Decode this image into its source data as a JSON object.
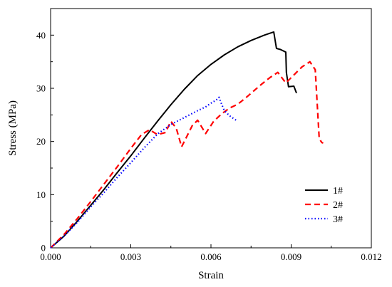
{
  "chart_data": {
    "type": "line",
    "xlabel": "Strain",
    "ylabel": "Stress (MPa)",
    "xlim": [
      0,
      0.012
    ],
    "ylim": [
      0,
      45
    ],
    "xticks": [
      0.0,
      0.003,
      0.006,
      0.009,
      0.012
    ],
    "xtick_labels": [
      "0.000",
      "0.003",
      "0.006",
      "0.009",
      "0.012"
    ],
    "yticks": [
      0,
      10,
      20,
      30,
      40
    ],
    "ytick_labels": [
      "0",
      "10",
      "20",
      "30",
      "40"
    ],
    "grid": false,
    "legend_position": "bottom-right",
    "series": [
      {
        "name": "1#",
        "color": "#000000",
        "dash": "solid",
        "x": [
          0.0,
          0.0005,
          0.001,
          0.0015,
          0.002,
          0.0025,
          0.003,
          0.0035,
          0.004,
          0.0045,
          0.005,
          0.0055,
          0.006,
          0.0065,
          0.007,
          0.0075,
          0.008,
          0.00835,
          0.00845,
          0.0086,
          0.0088,
          0.00882,
          0.0089,
          0.0091,
          0.0092
        ],
        "y": [
          0,
          2.2,
          5.0,
          8.0,
          11.0,
          14.2,
          17.3,
          20.6,
          23.8,
          26.9,
          29.8,
          32.4,
          34.5,
          36.3,
          37.8,
          39.0,
          40.0,
          40.6,
          37.5,
          37.3,
          36.8,
          33.0,
          30.3,
          30.4,
          29.1
        ]
      },
      {
        "name": "2#",
        "color": "#ff0000",
        "dash": "dashed",
        "x": [
          0.0,
          0.0005,
          0.001,
          0.0015,
          0.002,
          0.0025,
          0.003,
          0.0034,
          0.0037,
          0.004,
          0.0043,
          0.0045,
          0.0047,
          0.0049,
          0.0051,
          0.0053,
          0.0055,
          0.0058,
          0.0061,
          0.0064,
          0.0067,
          0.007,
          0.0073,
          0.0076,
          0.0079,
          0.0082,
          0.0085,
          0.0088,
          0.0091,
          0.0094,
          0.0097,
          0.0099,
          0.01005,
          0.01015,
          0.0102
        ],
        "y": [
          0,
          2.5,
          5.5,
          8.7,
          12.0,
          15.3,
          18.7,
          21.3,
          22.2,
          21.3,
          21.7,
          23.8,
          22.5,
          19.0,
          21.0,
          23.0,
          24.0,
          21.5,
          23.8,
          25.2,
          26.3,
          27.0,
          28.2,
          29.5,
          30.8,
          32.0,
          33.0,
          31.0,
          32.5,
          34.0,
          35.0,
          33.5,
          20.5,
          19.8,
          19.7
        ]
      },
      {
        "name": "3#",
        "color": "#0000ff",
        "dash": "dotted",
        "x": [
          0.0,
          0.0005,
          0.001,
          0.0015,
          0.002,
          0.0025,
          0.003,
          0.0035,
          0.004,
          0.0045,
          0.005,
          0.0055,
          0.0058,
          0.006,
          0.0062,
          0.0063,
          0.0064,
          0.0065,
          0.0067,
          0.007
        ],
        "y": [
          0,
          2.2,
          4.8,
          7.7,
          10.4,
          13.3,
          16.0,
          18.8,
          21.4,
          23.2,
          24.5,
          25.8,
          26.5,
          27.2,
          27.8,
          28.3,
          27.0,
          25.8,
          24.8,
          23.8
        ]
      }
    ]
  }
}
